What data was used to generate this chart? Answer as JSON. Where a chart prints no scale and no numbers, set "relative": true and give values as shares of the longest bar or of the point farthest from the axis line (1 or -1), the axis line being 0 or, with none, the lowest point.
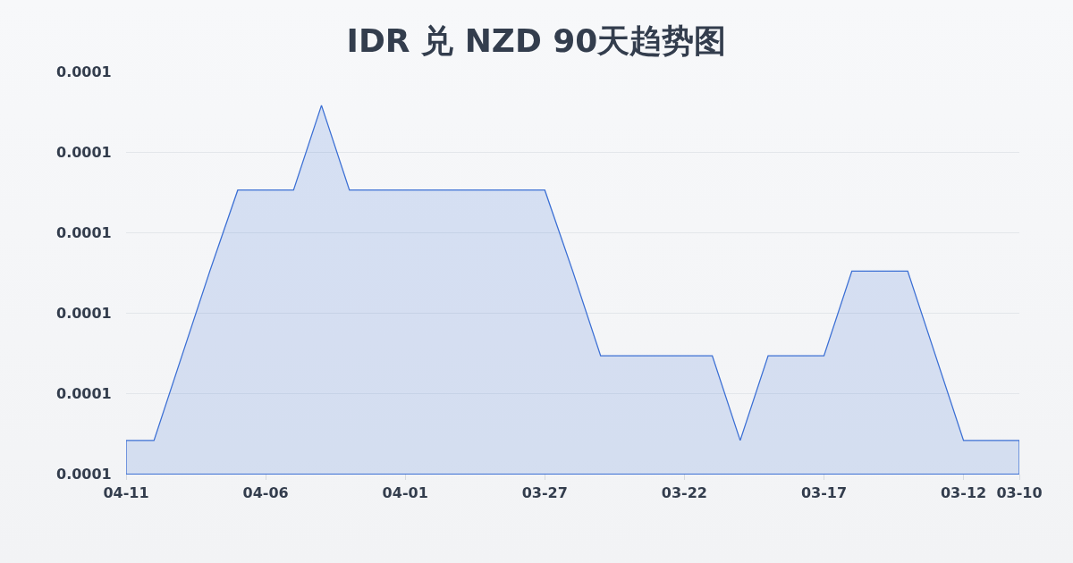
{
  "chart_data": {
    "type": "area",
    "title": "IDR 兑 NZD 90天趋势图",
    "relative": true,
    "categories": [
      "04-11",
      null,
      null,
      null,
      null,
      "04-06",
      null,
      null,
      null,
      null,
      "04-01",
      null,
      null,
      null,
      null,
      "03-27",
      null,
      null,
      null,
      null,
      "03-22",
      null,
      null,
      null,
      null,
      "03-17",
      null,
      null,
      null,
      null,
      "03-12",
      null,
      "03-10"
    ],
    "values": [
      0.09,
      0.09,
      0.32,
      0.55,
      0.77,
      0.77,
      0.77,
      1,
      0.77,
      0.77,
      0.77,
      0.77,
      0.77,
      0.77,
      0.77,
      0.77,
      0.55,
      0.32,
      0.32,
      0.32,
      0.32,
      0.32,
      0.09,
      0.32,
      0.32,
      0.32,
      0.55,
      0.55,
      0.55,
      0.32,
      0.09,
      0.09,
      0.09
    ],
    "color": "#3b6fd4",
    "annotations": [
      "0.0001",
      "0.0001",
      "0.0001",
      "0.0001",
      "0.0001",
      "0.0001"
    ],
    "grid": "y"
  }
}
